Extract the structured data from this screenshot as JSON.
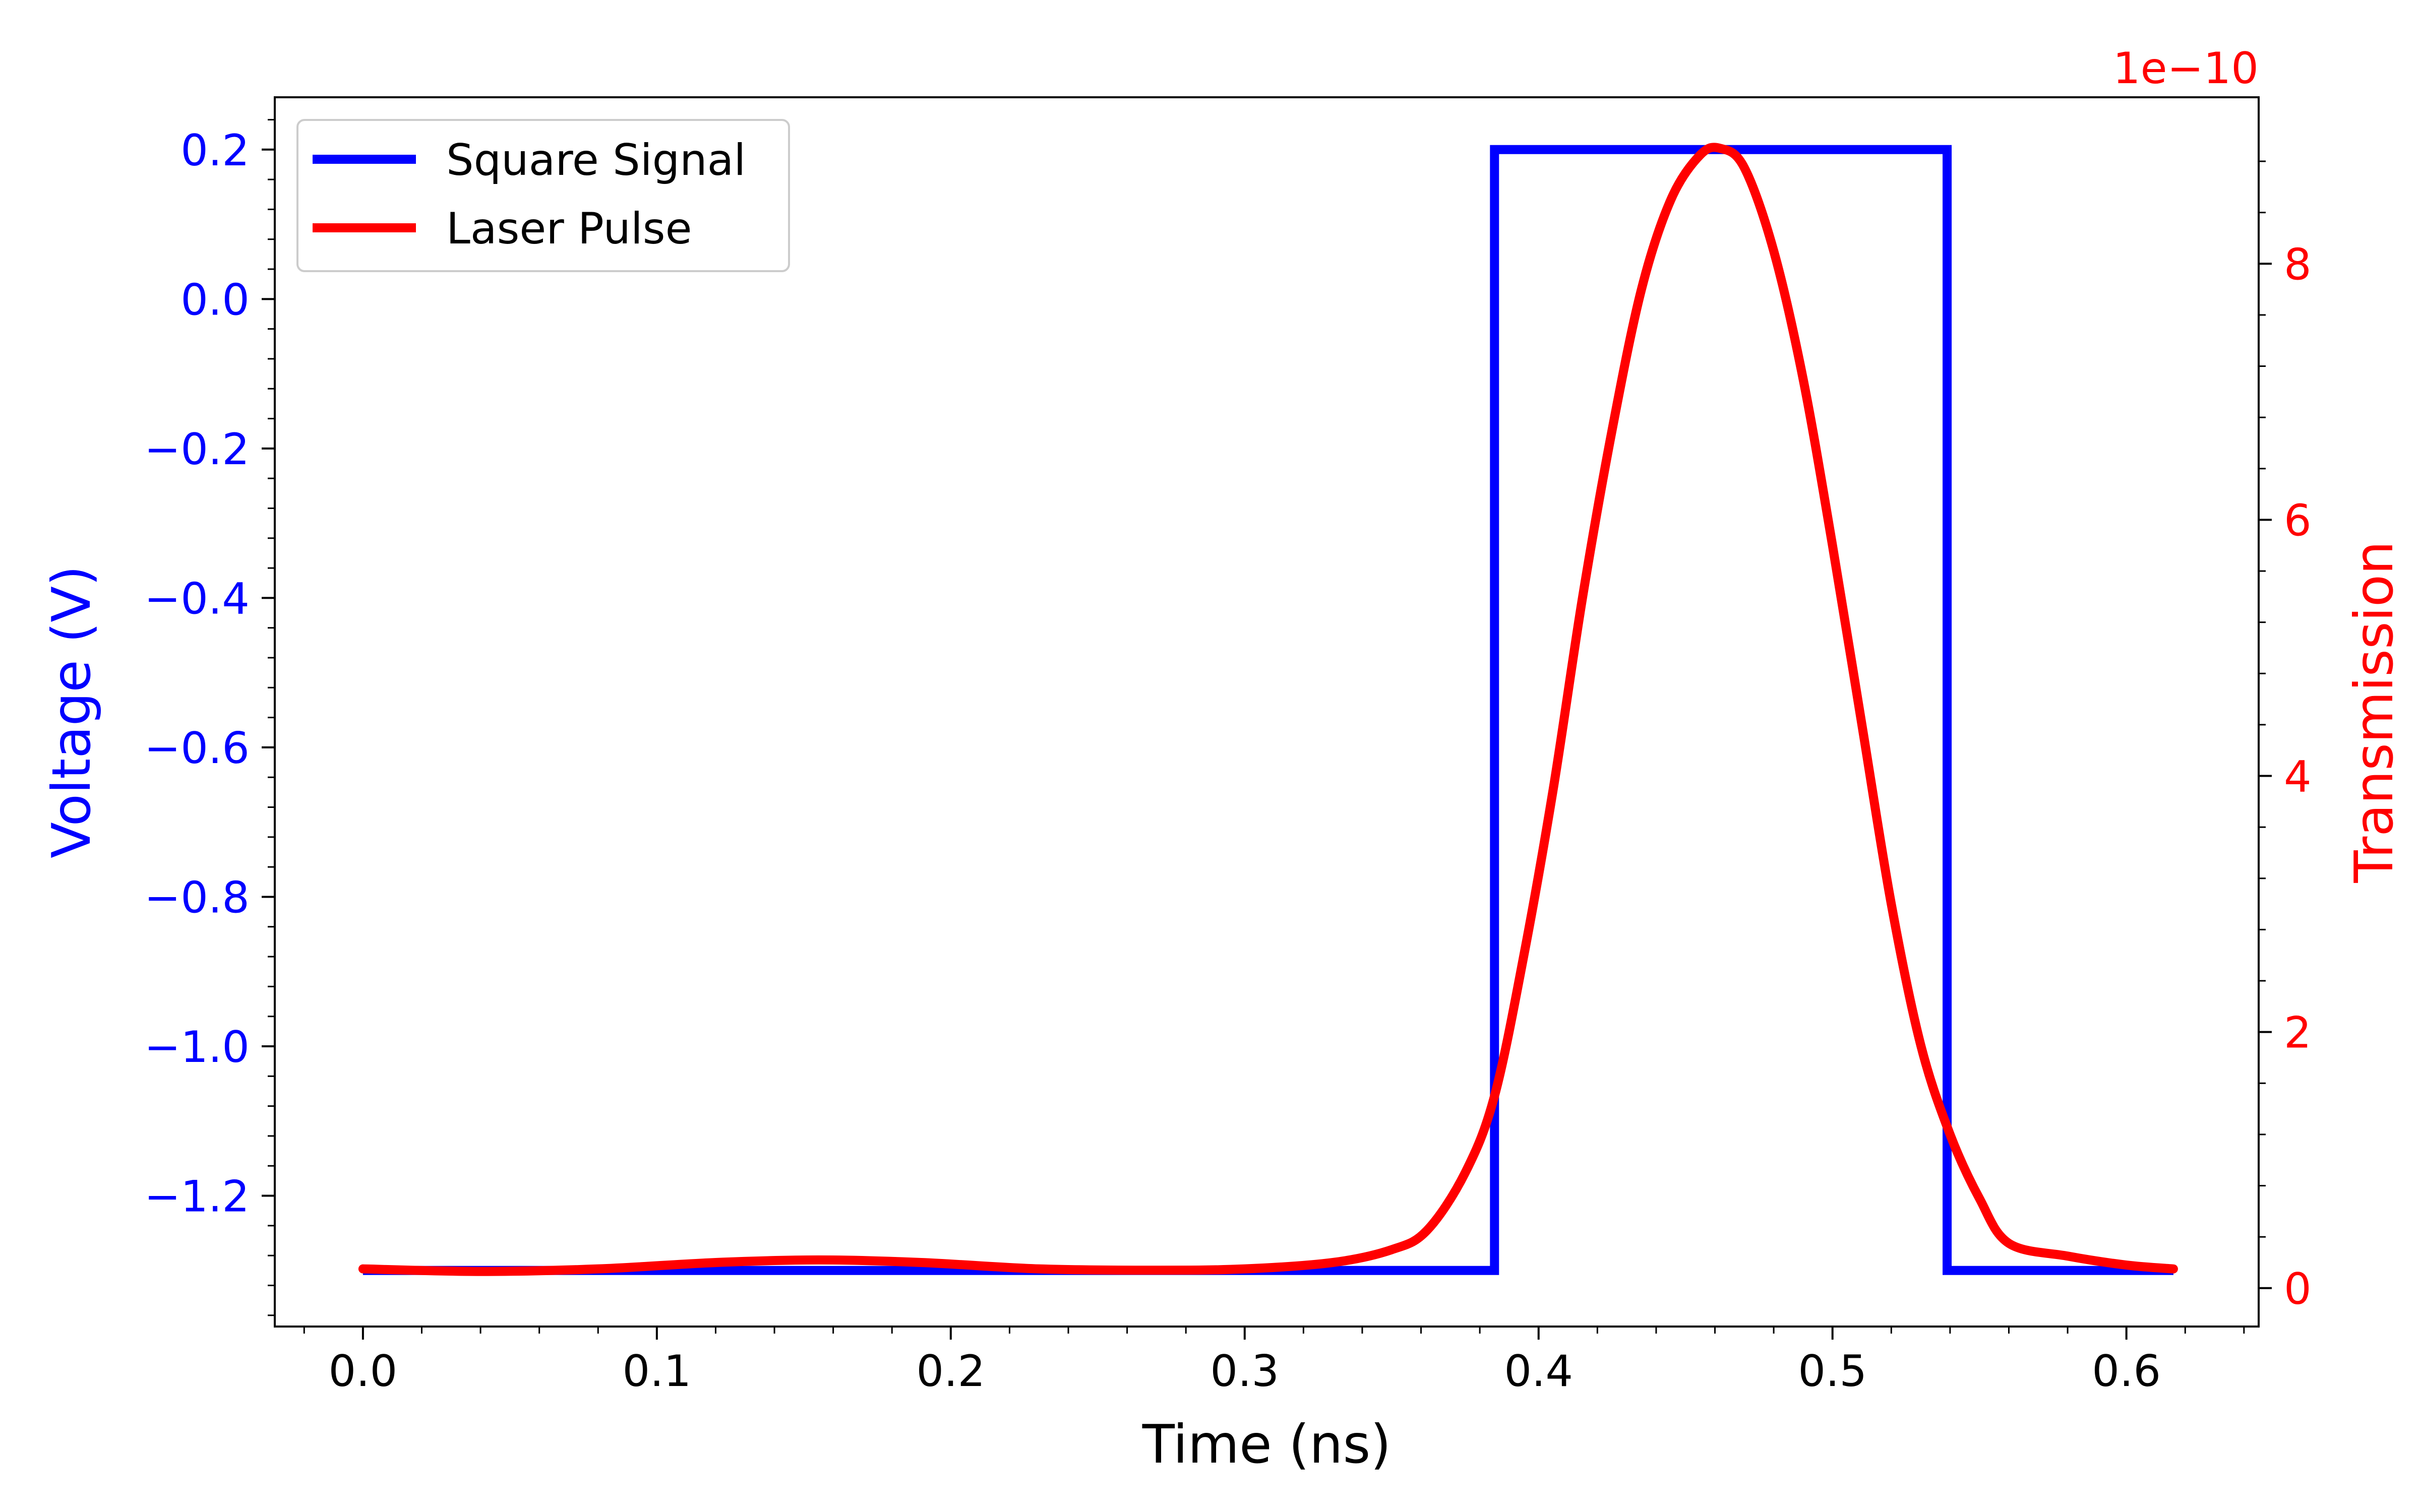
{
  "chart_data": {
    "type": "line",
    "xlabel": "Time (ns)",
    "ylabel_left": "Voltage (V)",
    "ylabel_right": "Transmission",
    "right_offset_text": "1e−10",
    "xlim": [
      -0.03,
      0.645
    ],
    "ylim_left": [
      -1.375,
      0.27
    ],
    "ylim_right": [
      -0.3,
      9.3
    ],
    "x_ticks": [
      0.0,
      0.1,
      0.2,
      0.3,
      0.4,
      0.5,
      0.6
    ],
    "x_tick_labels": [
      "0.0",
      "0.1",
      "0.2",
      "0.3",
      "0.4",
      "0.5",
      "0.6"
    ],
    "y_left_ticks": [
      0.2,
      0.0,
      -0.2,
      -0.4,
      -0.6,
      -0.8,
      -1.0,
      -1.2
    ],
    "y_left_tick_labels": [
      "0.2",
      "0.0",
      "−0.2",
      "−0.4",
      "−0.6",
      "−0.8",
      "−1.0",
      "−1.2"
    ],
    "y_right_ticks": [
      0,
      2,
      4,
      6,
      8
    ],
    "y_right_tick_labels": [
      "0",
      "2",
      "4",
      "6",
      "8"
    ],
    "legend_position": "top-left",
    "grid": false,
    "series": [
      {
        "name": "Square Signal",
        "axis": "left",
        "color": "#0000ff",
        "x": [
          0.0,
          0.385,
          0.385,
          0.539,
          0.539,
          0.616
        ],
        "y": [
          -1.3,
          -1.3,
          0.2,
          0.2,
          -1.3,
          -1.3
        ]
      },
      {
        "name": "Laser Pulse",
        "axis": "right",
        "color": "#ff0000",
        "x": [
          0.0,
          0.04,
          0.08,
          0.12,
          0.155,
          0.19,
          0.23,
          0.27,
          0.3,
          0.33,
          0.35,
          0.362,
          0.375,
          0.385,
          0.395,
          0.405,
          0.415,
          0.425,
          0.435,
          0.445,
          0.455,
          0.462,
          0.47,
          0.48,
          0.49,
          0.5,
          0.51,
          0.52,
          0.53,
          0.54,
          0.55,
          0.56,
          0.58,
          0.6,
          0.616
        ],
        "y": [
          0.15,
          0.13,
          0.15,
          0.2,
          0.22,
          0.2,
          0.15,
          0.14,
          0.15,
          0.2,
          0.3,
          0.45,
          0.9,
          1.5,
          2.6,
          3.9,
          5.4,
          6.7,
          7.8,
          8.5,
          8.85,
          8.9,
          8.75,
          8.1,
          7.1,
          5.8,
          4.4,
          3.0,
          1.9,
          1.2,
          0.7,
          0.35,
          0.25,
          0.18,
          0.15
        ]
      }
    ]
  }
}
